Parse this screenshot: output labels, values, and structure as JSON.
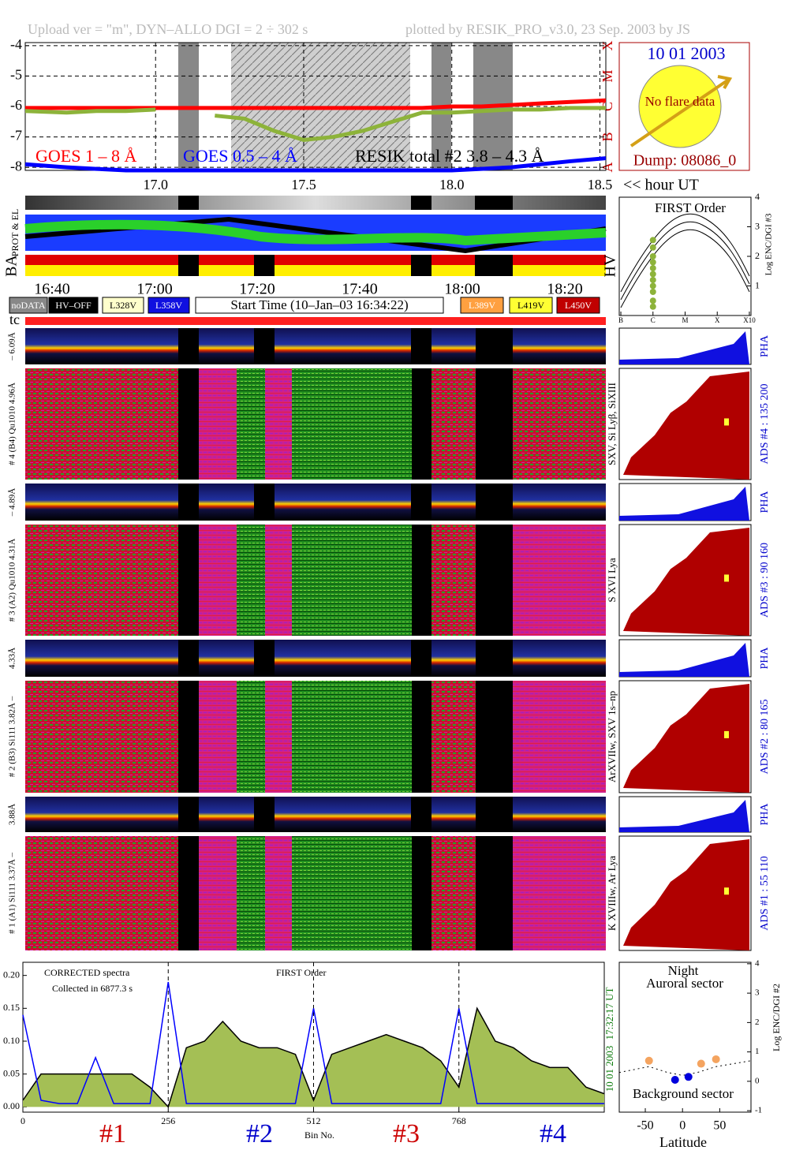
{
  "header": {
    "left": "Upload ver = \"m\", DYN–ALLO DGI =   2 ÷ 302 s",
    "right": "plotted by RESIK_PRO_v3.0, 23 Sep. 2003 by JS"
  },
  "date_box": {
    "date": "10 01 2003",
    "note": "No flare data",
    "dump": "Dump: 08086_0"
  },
  "class_labels": [
    "A",
    "B",
    "C",
    "M",
    "X"
  ],
  "strip_labels": [
    "PROT & EL",
    "BA",
    "HV",
    "tc"
  ],
  "time_axis": [
    "16:40",
    "17:00",
    "17:20",
    "17:40",
    "18:00",
    "18:20"
  ],
  "legend": [
    "noDATA",
    "HV–OFF",
    "L328V",
    "L358V",
    "Start Time (10–Jan–03 16:34:22)",
    "L389V",
    "L419V",
    "L450V"
  ],
  "channels": [
    {
      "pha_axis": "– 6.09Å",
      "axis": "# 4 (B4) Qu1010 4.96Å",
      "lines": "SXV, Si Lyβ, SiXIII",
      "pha": "PHA",
      "ads": "ADS #4 :   135 200"
    },
    {
      "pha_axis": "– 4.89Å",
      "axis": "# 3 (A2) Qu1010  4.31Å",
      "lines": "S XVI Lya",
      "pha": "PHA",
      "ads": "ADS #3 :   90 160"
    },
    {
      "pha_axis": "4.33Å",
      "axis": "# 2 (B3) Si111  3.82Å –",
      "lines": "ArXVIIw, SXV 1s–np",
      "pha": "PHA",
      "ads": "ADS #2 :   80 165"
    },
    {
      "pha_axis": "3.88Å",
      "axis": "# 1 (A1) Si111  3.37Å –",
      "lines": "K XVIIIw, Ar Lya",
      "pha": "PHA",
      "ads": "ADS #1 :   55 110"
    }
  ],
  "chart_data": [
    {
      "type": "line",
      "xlabel": "<< hour UT",
      "grid": true,
      "x": [
        16.56,
        16.7,
        16.8,
        16.9,
        17.0,
        17.1,
        17.2,
        17.3,
        17.4,
        17.5,
        17.6,
        17.7,
        17.8,
        17.9,
        18.0,
        18.1,
        18.2,
        18.3,
        18.4,
        18.52
      ],
      "xlim": [
        16.56,
        18.52
      ],
      "xticks": [
        {
          "value": 17.0,
          "label": "17.0"
        },
        {
          "value": 17.5,
          "label": "17.5"
        },
        {
          "value": 18.0,
          "label": "18.0"
        },
        {
          "value": 18.5,
          "label": "18.5"
        }
      ],
      "ylim": [
        -8.1,
        -3.9
      ],
      "yticks": [
        -4,
        -5,
        -6,
        -7,
        -8
      ],
      "series": [
        {
          "name": "GOES 1 – 8 Å",
          "color": "#ff0000",
          "values": [
            -6.05,
            -6.05,
            -6.05,
            -6.05,
            -6.05,
            -6.05,
            -6.05,
            -6.05,
            -6.05,
            -6.05,
            -6.05,
            -6.05,
            -6.05,
            -6.05,
            -6.0,
            -6.0,
            -5.95,
            -5.9,
            -5.85,
            -5.8
          ]
        },
        {
          "name": "GOES 0.5 – 4 Å",
          "color": "#0000ff",
          "values": [
            -7.9,
            -8.0,
            -8.05,
            -8.1,
            -8.1,
            -8.1,
            -8.1,
            -8.1,
            -8.1,
            -8.1,
            -8.1,
            -8.1,
            -8.1,
            -8.1,
            -8.1,
            -8.05,
            -8.0,
            -7.9,
            -7.8,
            -7.7
          ]
        },
        {
          "name": "RESIK total #2  3.8 – 4.3 Å",
          "color": "#8db33a",
          "values": [
            -6.15,
            -6.2,
            -6.15,
            -6.15,
            -6.1,
            null,
            -6.3,
            -6.4,
            -6.8,
            -7.1,
            -7.0,
            -6.8,
            -6.5,
            -6.2,
            -6.2,
            -6.15,
            -6.1,
            -6.1,
            -6.05,
            -6.05
          ]
        }
      ]
    },
    {
      "type": "scatter",
      "title": "FIRST Order",
      "ylabel": "Log ENC/DGI #3",
      "y_axis_position": "right",
      "xlim": [
        -7.05,
        -2.95
      ],
      "xticks": [
        {
          "value": -7,
          "label": "B"
        },
        {
          "value": -6,
          "label": "C"
        },
        {
          "value": -5,
          "label": "M"
        },
        {
          "value": -4,
          "label": "X"
        },
        {
          "value": -3,
          "label": "X10"
        }
      ],
      "ylim": [
        0,
        4
      ],
      "yticks": [
        1,
        2,
        3,
        4
      ],
      "series": [
        {
          "color": "#8db33a",
          "x": [
            -6.0,
            -6.0,
            -6.0,
            -6.0,
            -6.0,
            -6.0,
            -6.0,
            -6.0,
            -6.0,
            -6.0,
            -6.0
          ],
          "values": [
            0.3,
            0.5,
            0.8,
            1.0,
            1.2,
            1.4,
            1.6,
            1.8,
            2.0,
            2.3,
            2.55
          ]
        }
      ]
    },
    {
      "type": "line",
      "title": "CORRECTED spectra",
      "subtitle": "Collected in  6877.3 s",
      "annotations": [
        "FIRST Order"
      ],
      "xlabel": "Bin No.",
      "grid": true,
      "section_labels": [
        {
          "text": "#1",
          "color": "#cc0000"
        },
        {
          "text": "#2",
          "color": "#0000cc"
        },
        {
          "text": "#3",
          "color": "#cc0000"
        },
        {
          "text": "#4",
          "color": "#0000cc"
        }
      ],
      "side_labels": [
        "17:32:17 UT",
        "10 01 2003"
      ],
      "x": [
        0,
        32,
        64,
        96,
        128,
        160,
        192,
        224,
        256,
        288,
        320,
        352,
        384,
        416,
        448,
        480,
        512,
        544,
        576,
        608,
        640,
        672,
        704,
        736,
        768,
        800,
        832,
        864,
        896,
        928,
        960,
        992,
        1024
      ],
      "xlim": [
        0,
        1024
      ],
      "xticks": [
        0,
        256,
        512,
        768
      ],
      "ylim": [
        -0.008,
        0.22
      ],
      "yticks": [
        {
          "value": 0,
          "label": "0.00"
        },
        {
          "value": 0.05,
          "label": "0.05"
        },
        {
          "value": 0.1,
          "label": "0.10"
        },
        {
          "value": 0.15,
          "label": "0.15"
        },
        {
          "value": 0.2,
          "label": "0.20"
        }
      ],
      "series": [
        {
          "color": "#000000",
          "fill": "#a4bf55",
          "values": [
            0.01,
            0.05,
            0.05,
            0.05,
            0.05,
            0.05,
            0.05,
            0.03,
            0.0,
            0.09,
            0.1,
            0.13,
            0.1,
            0.09,
            0.09,
            0.08,
            0.01,
            0.08,
            0.09,
            0.1,
            0.11,
            0.1,
            0.09,
            0.07,
            0.03,
            0.15,
            0.1,
            0.09,
            0.07,
            0.06,
            0.06,
            0.03,
            0.02
          ]
        },
        {
          "color": "#0000ff",
          "values": [
            0.14,
            0.01,
            0.005,
            0.005,
            0.075,
            0.005,
            0.005,
            0.005,
            0.19,
            0.005,
            0.005,
            0.005,
            0.005,
            0.005,
            0.005,
            0.005,
            0.15,
            0.005,
            0.005,
            0.005,
            0.005,
            0.005,
            0.005,
            0.005,
            0.15,
            0.005,
            0.005,
            0.005,
            0.005,
            0.005,
            0.005,
            0.005,
            0.005
          ]
        }
      ]
    },
    {
      "type": "scatter",
      "title": "Night",
      "subtitle": "Auroral sector",
      "annotations": [
        "Background sector"
      ],
      "xlabel": "Latitude",
      "ylabel": "Log ENC/DGI #2",
      "y_axis_position": "right",
      "xlim": [
        -85,
        92
      ],
      "xticks": [
        -50,
        0,
        50
      ],
      "ylim": [
        -1.05,
        4.05
      ],
      "yticks": [
        -1,
        0,
        1,
        2,
        3,
        4
      ],
      "series": [
        {
          "color": "#000000",
          "style": "dotted",
          "x": [
            -85,
            -45,
            -20,
            0,
            20,
            45,
            92
          ],
          "values": [
            0.3,
            0.5,
            0.3,
            0.2,
            0.3,
            0.5,
            0.7
          ]
        },
        {
          "color": "#f4a460",
          "x": [
            -45,
            25,
            45
          ],
          "values": [
            0.7,
            0.6,
            0.75
          ]
        },
        {
          "color": "#0000dd",
          "x": [
            -10,
            8
          ],
          "values": [
            0.05,
            0.15
          ]
        }
      ]
    }
  ]
}
